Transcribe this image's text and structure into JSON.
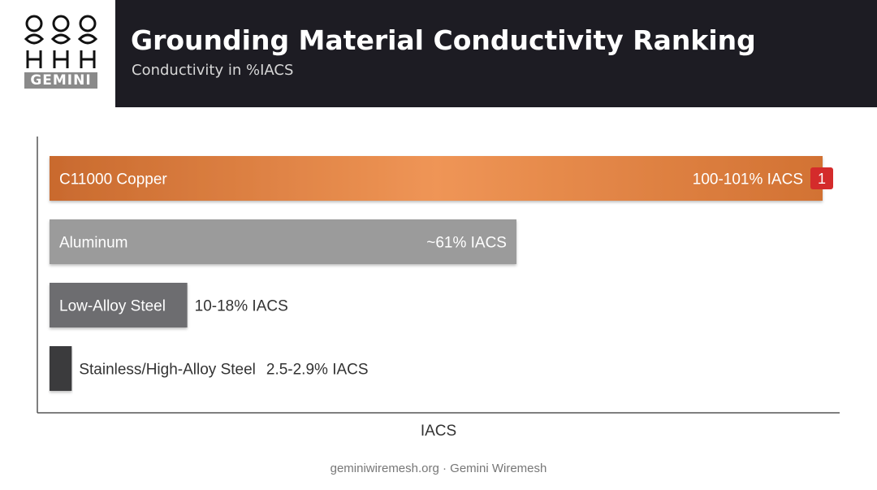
{
  "brand": {
    "logo_text": "GEMINI"
  },
  "header": {
    "title": "Grounding Material Conductivity Ranking",
    "subtitle": "Conductivity in %IACS"
  },
  "chart_data": {
    "type": "bar",
    "orientation": "horizontal",
    "title": "Grounding Material Conductivity Ranking",
    "subtitle": "Conductivity in %IACS",
    "xlabel": "IACS",
    "ylabel": "",
    "xlim": [
      0,
      101
    ],
    "grid": false,
    "categories": [
      "C11000 Copper",
      "Aluminum",
      "Low-Alloy Steel",
      "Stainless/High-Alloy Steel"
    ],
    "values": [
      101,
      61,
      18,
      2.9
    ],
    "value_labels": [
      "100-101% IACS",
      "~61% IACS",
      "10-18% IACS",
      "2.5-2.9% IACS"
    ],
    "rank_badge": {
      "category": "C11000 Copper",
      "text": "1"
    },
    "colors": [
      "#e07c3f",
      "#9b9b9b",
      "#6d6d6f",
      "#3a3a3d"
    ],
    "badge_color": "#d42b2b"
  },
  "footer": {
    "text": "geminiwiremesh.org · Gemini Wiremesh"
  }
}
